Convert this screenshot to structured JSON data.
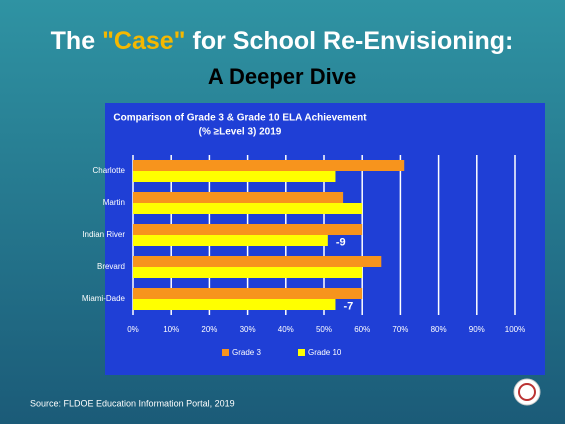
{
  "slide": {
    "title_parts": [
      "The ",
      "\"Case\"",
      " for School Re-Envisioning:"
    ],
    "subtitle": "A Deeper Dive",
    "source": "Source: FLDOE Education Information Portal, 2019"
  },
  "chart_data": {
    "type": "bar",
    "orientation": "horizontal",
    "title": [
      "Comparison of Grade 3 & Grade 10 ELA Achievement",
      "(% ≥Level 3) 2019"
    ],
    "categories": [
      "Charlotte",
      "Martin",
      "Indian River",
      "Brevard",
      "Miami-Dade"
    ],
    "series": [
      {
        "name": "Grade 3",
        "color": "#f7941d",
        "values": [
          71,
          55,
          60,
          65,
          60
        ]
      },
      {
        "name": "Grade 10",
        "color": "#ffff00",
        "values": [
          53,
          60,
          51,
          60,
          53
        ]
      }
    ],
    "annotations": [
      {
        "text": "-9",
        "category": "Indian River"
      },
      {
        "text": "-7",
        "category": "Miami-Dade"
      }
    ],
    "xlim": [
      0,
      100
    ],
    "xticks": [
      {
        "value": 0,
        "label": "0%"
      },
      {
        "value": 10,
        "label": "10%"
      },
      {
        "value": 20,
        "label": "20%"
      },
      {
        "value": 30,
        "label": "30%"
      },
      {
        "value": 40,
        "label": "40%"
      },
      {
        "value": 50,
        "label": "50%"
      },
      {
        "value": 60,
        "label": "60%"
      },
      {
        "value": 70,
        "label": "70%"
      },
      {
        "value": 80,
        "label": "80%"
      },
      {
        "value": 90,
        "label": "90%"
      },
      {
        "value": 100,
        "label": "100%"
      }
    ],
    "grid": true,
    "legend": "bottom"
  }
}
